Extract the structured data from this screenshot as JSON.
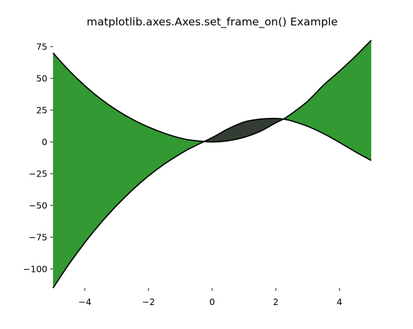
{
  "chart_data": {
    "type": "area",
    "title": "matplotlib.axes.Axes.set_frame_on() Example",
    "xlabel": "",
    "ylabel": "",
    "xlim": [
      -5,
      5
    ],
    "ylim": [
      -115,
      80
    ],
    "frame_on": false,
    "grid": false,
    "x_ticks": [
      -4,
      -2,
      0,
      2,
      4
    ],
    "x_tick_labels": [
      "−4",
      "−2",
      "0",
      "2",
      "4"
    ],
    "y_ticks": [
      75,
      50,
      25,
      0,
      -25,
      -50,
      -75,
      -100
    ],
    "y_tick_labels": [
      "75",
      "50",
      "25",
      "0",
      "−25",
      "−50",
      "−75",
      "−100"
    ],
    "series": [
      {
        "x": [
          -5,
          -4.5,
          -4,
          -3.5,
          -3,
          -2.5,
          -2,
          -1.5,
          -1,
          -0.75,
          -0.5,
          0,
          0.5,
          1,
          1.5,
          2,
          2.25,
          2.5,
          3,
          3.5,
          4,
          4.5,
          5
        ],
        "y": [
          70,
          56.2,
          44.2,
          33.8,
          25,
          17.7,
          11.7,
          6.8,
          3,
          1.7,
          0.9,
          0,
          0.9,
          3.6,
          8.2,
          15,
          18.1,
          22.3,
          32,
          44.7,
          55.7,
          67.4,
          80
        ]
      },
      {
        "x": [
          -5,
          -4.5,
          -4,
          -3.5,
          -3,
          -2.5,
          -2,
          -1.5,
          -1,
          -0.75,
          -0.5,
          0,
          0.5,
          1,
          1.5,
          2,
          2.25,
          2.5,
          3,
          3.5,
          4,
          4.5,
          5
        ],
        "y": [
          -115,
          -96.2,
          -79.2,
          -63.8,
          -50,
          -37.7,
          -26.8,
          -17.4,
          -9.4,
          -5.8,
          -2.7,
          3.4,
          10.3,
          15.6,
          17.9,
          18.5,
          17.9,
          16.5,
          12.3,
          6.5,
          -0.4,
          -7.8,
          -14.6
        ]
      }
    ],
    "fill_colors": {
      "series_1_above_series_2": "#339933",
      "series_2_above_series_1": "#333d33"
    },
    "line_color": "#000000"
  }
}
